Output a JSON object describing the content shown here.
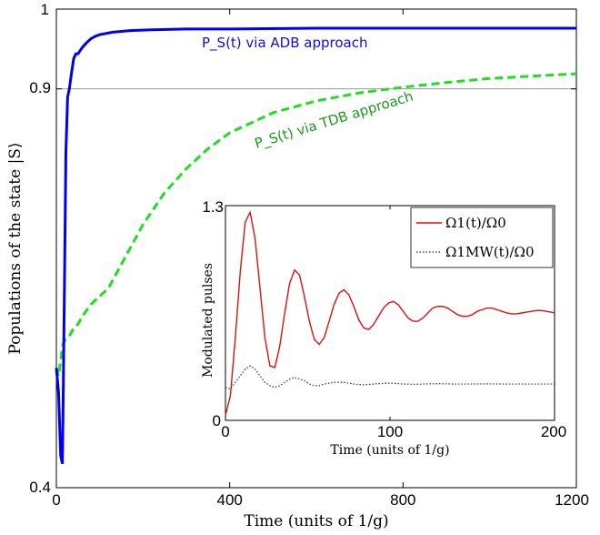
{
  "colors": {
    "adb": "#0000ee",
    "tdb": "#22dd22",
    "omega1": "#dd1111",
    "omega_mw": "#333333",
    "refline": "#999999",
    "ann_adb": "#1010dd",
    "ann_tdb": "#1a9a1a"
  },
  "chart_data": [
    {
      "type": "line",
      "xlabel": "Time (units of 1/g)",
      "ylabel": "Populations of the state |S⟩",
      "xlim": [
        0,
        1200
      ],
      "ylim": [
        0.4,
        1.0
      ],
      "x_tick_labels": [
        "0",
        "400",
        "800",
        "1200"
      ],
      "x_ticks": [
        0,
        400,
        800,
        1200
      ],
      "y_tick_labels": [
        "0.4",
        "0.9",
        "1"
      ],
      "y_ticks": [
        0.4,
        0.9,
        1.0
      ],
      "reference_line_y": 0.9,
      "grid": false,
      "annotations": {
        "adb": "P_S(t) via ADB approach",
        "tdb": "P_S(t) via TDB approach"
      },
      "series": [
        {
          "name": "P_S(t) via ADB approach",
          "style": "solid",
          "x": [
            0,
            5,
            10,
            14,
            18,
            22,
            26,
            30,
            35,
            40,
            45,
            50,
            55,
            60,
            70,
            80,
            90,
            100,
            130,
            170,
            220,
            300,
            400,
            600,
            900,
            1200
          ],
          "y": [
            0.55,
            0.52,
            0.44,
            0.43,
            0.62,
            0.82,
            0.89,
            0.9,
            0.92,
            0.938,
            0.944,
            0.944,
            0.948,
            0.952,
            0.958,
            0.963,
            0.966,
            0.968,
            0.971,
            0.973,
            0.974,
            0.975,
            0.975,
            0.976,
            0.976,
            0.976
          ]
        },
        {
          "name": "P_S(t) via TDB approach",
          "style": "dashed",
          "x": [
            0,
            5,
            10,
            15,
            20,
            30,
            40,
            50,
            60,
            80,
            100,
            120,
            150,
            200,
            250,
            300,
            350,
            400,
            500,
            600,
            700,
            800,
            900,
            1000,
            1100,
            1200
          ],
          "y": [
            0.55,
            0.54,
            0.56,
            0.58,
            0.585,
            0.59,
            0.6,
            0.605,
            0.615,
            0.63,
            0.64,
            0.65,
            0.68,
            0.73,
            0.77,
            0.8,
            0.825,
            0.845,
            0.87,
            0.885,
            0.895,
            0.902,
            0.908,
            0.913,
            0.916,
            0.919
          ]
        }
      ]
    },
    {
      "type": "line",
      "xlabel": "Time (units of 1/g)",
      "ylabel": "Modulated pulses",
      "xlim": [
        0,
        200
      ],
      "ylim": [
        0,
        1.3
      ],
      "x_tick_labels": [
        "0",
        "100",
        "200"
      ],
      "x_ticks": [
        0,
        100,
        200
      ],
      "y_tick_labels": [
        "0",
        "1.3"
      ],
      "y_ticks": [
        0,
        1.3
      ],
      "legend_position": "top-right",
      "legend": {
        "omega1": "Ω1(t)/Ω0",
        "omega_mw": "Ω1MW(t)/Ω0"
      },
      "series": [
        {
          "name": "Ω1(t)/Ω0",
          "style": "solid",
          "x": [
            0,
            3,
            6,
            9,
            12,
            15,
            18,
            21,
            24,
            27,
            30,
            33,
            36,
            39,
            42,
            45,
            48,
            51,
            54,
            57,
            60,
            63,
            66,
            69,
            72,
            75,
            78,
            81,
            84,
            87,
            90,
            93,
            96,
            99,
            102,
            105,
            108,
            111,
            114,
            117,
            120,
            123,
            126,
            129,
            132,
            135,
            138,
            141,
            144,
            147,
            150,
            153,
            156,
            159,
            162,
            165,
            168,
            171,
            174,
            177,
            180,
            183,
            186,
            189,
            192,
            195,
            198,
            200
          ],
          "y": [
            0.03,
            0.15,
            0.5,
            0.9,
            1.2,
            1.26,
            1.1,
            0.8,
            0.5,
            0.33,
            0.32,
            0.45,
            0.65,
            0.83,
            0.91,
            0.88,
            0.75,
            0.6,
            0.49,
            0.46,
            0.5,
            0.6,
            0.7,
            0.77,
            0.79,
            0.76,
            0.69,
            0.61,
            0.56,
            0.55,
            0.58,
            0.63,
            0.68,
            0.71,
            0.72,
            0.7,
            0.66,
            0.62,
            0.6,
            0.6,
            0.62,
            0.65,
            0.68,
            0.69,
            0.69,
            0.68,
            0.66,
            0.64,
            0.63,
            0.63,
            0.64,
            0.66,
            0.67,
            0.68,
            0.68,
            0.67,
            0.66,
            0.65,
            0.645,
            0.645,
            0.65,
            0.655,
            0.66,
            0.665,
            0.665,
            0.66,
            0.655,
            0.65
          ]
        },
        {
          "name": "Ω1MW(t)/Ω0",
          "style": "dotted",
          "x": [
            0,
            3,
            6,
            9,
            12,
            15,
            18,
            21,
            24,
            27,
            30,
            33,
            36,
            39,
            42,
            45,
            48,
            51,
            54,
            57,
            60,
            66,
            72,
            78,
            84,
            90,
            96,
            102,
            108,
            114,
            120,
            130,
            140,
            150,
            160,
            170,
            180,
            190,
            200
          ],
          "y": [
            0.2,
            0.19,
            0.23,
            0.27,
            0.31,
            0.33,
            0.31,
            0.27,
            0.23,
            0.21,
            0.2,
            0.21,
            0.23,
            0.25,
            0.26,
            0.25,
            0.24,
            0.22,
            0.21,
            0.21,
            0.22,
            0.23,
            0.23,
            0.22,
            0.215,
            0.22,
            0.225,
            0.225,
            0.22,
            0.218,
            0.22,
            0.222,
            0.22,
            0.22,
            0.221,
            0.22,
            0.22,
            0.22,
            0.22
          ]
        }
      ]
    }
  ]
}
